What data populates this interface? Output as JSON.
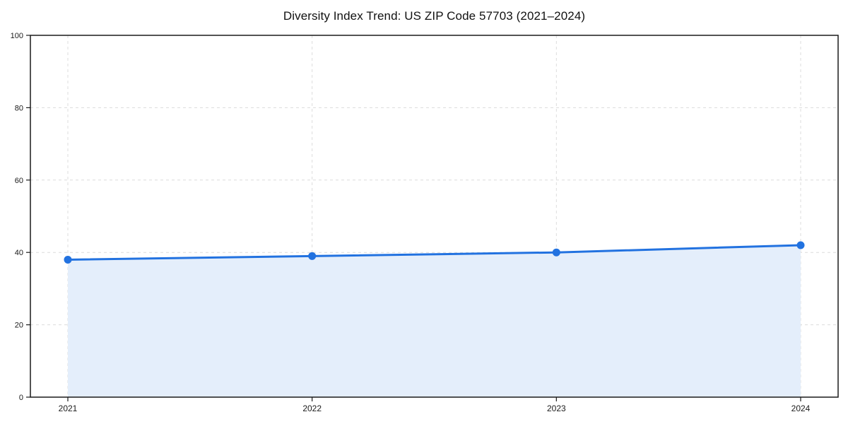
{
  "chart_data": {
    "type": "area",
    "title": "Diversity Index Trend: US ZIP Code 57703 (2021–2024)",
    "x": [
      "2021",
      "2022",
      "2023",
      "2024"
    ],
    "series": [
      {
        "name": "Diversity Index",
        "values": [
          38,
          39,
          40,
          42
        ]
      }
    ],
    "xlabel": "",
    "ylabel": "",
    "ylim": [
      0,
      100
    ],
    "yticks": [
      0,
      20,
      40,
      60,
      80,
      100
    ],
    "grid": true,
    "legend": false,
    "colors": {
      "line": "#2272e0",
      "marker": "#2272e0",
      "fill": "#e4eefb",
      "grid": "#dcdcdc",
      "spine": "#1a1a1a",
      "text": "#1a1a1a"
    }
  }
}
